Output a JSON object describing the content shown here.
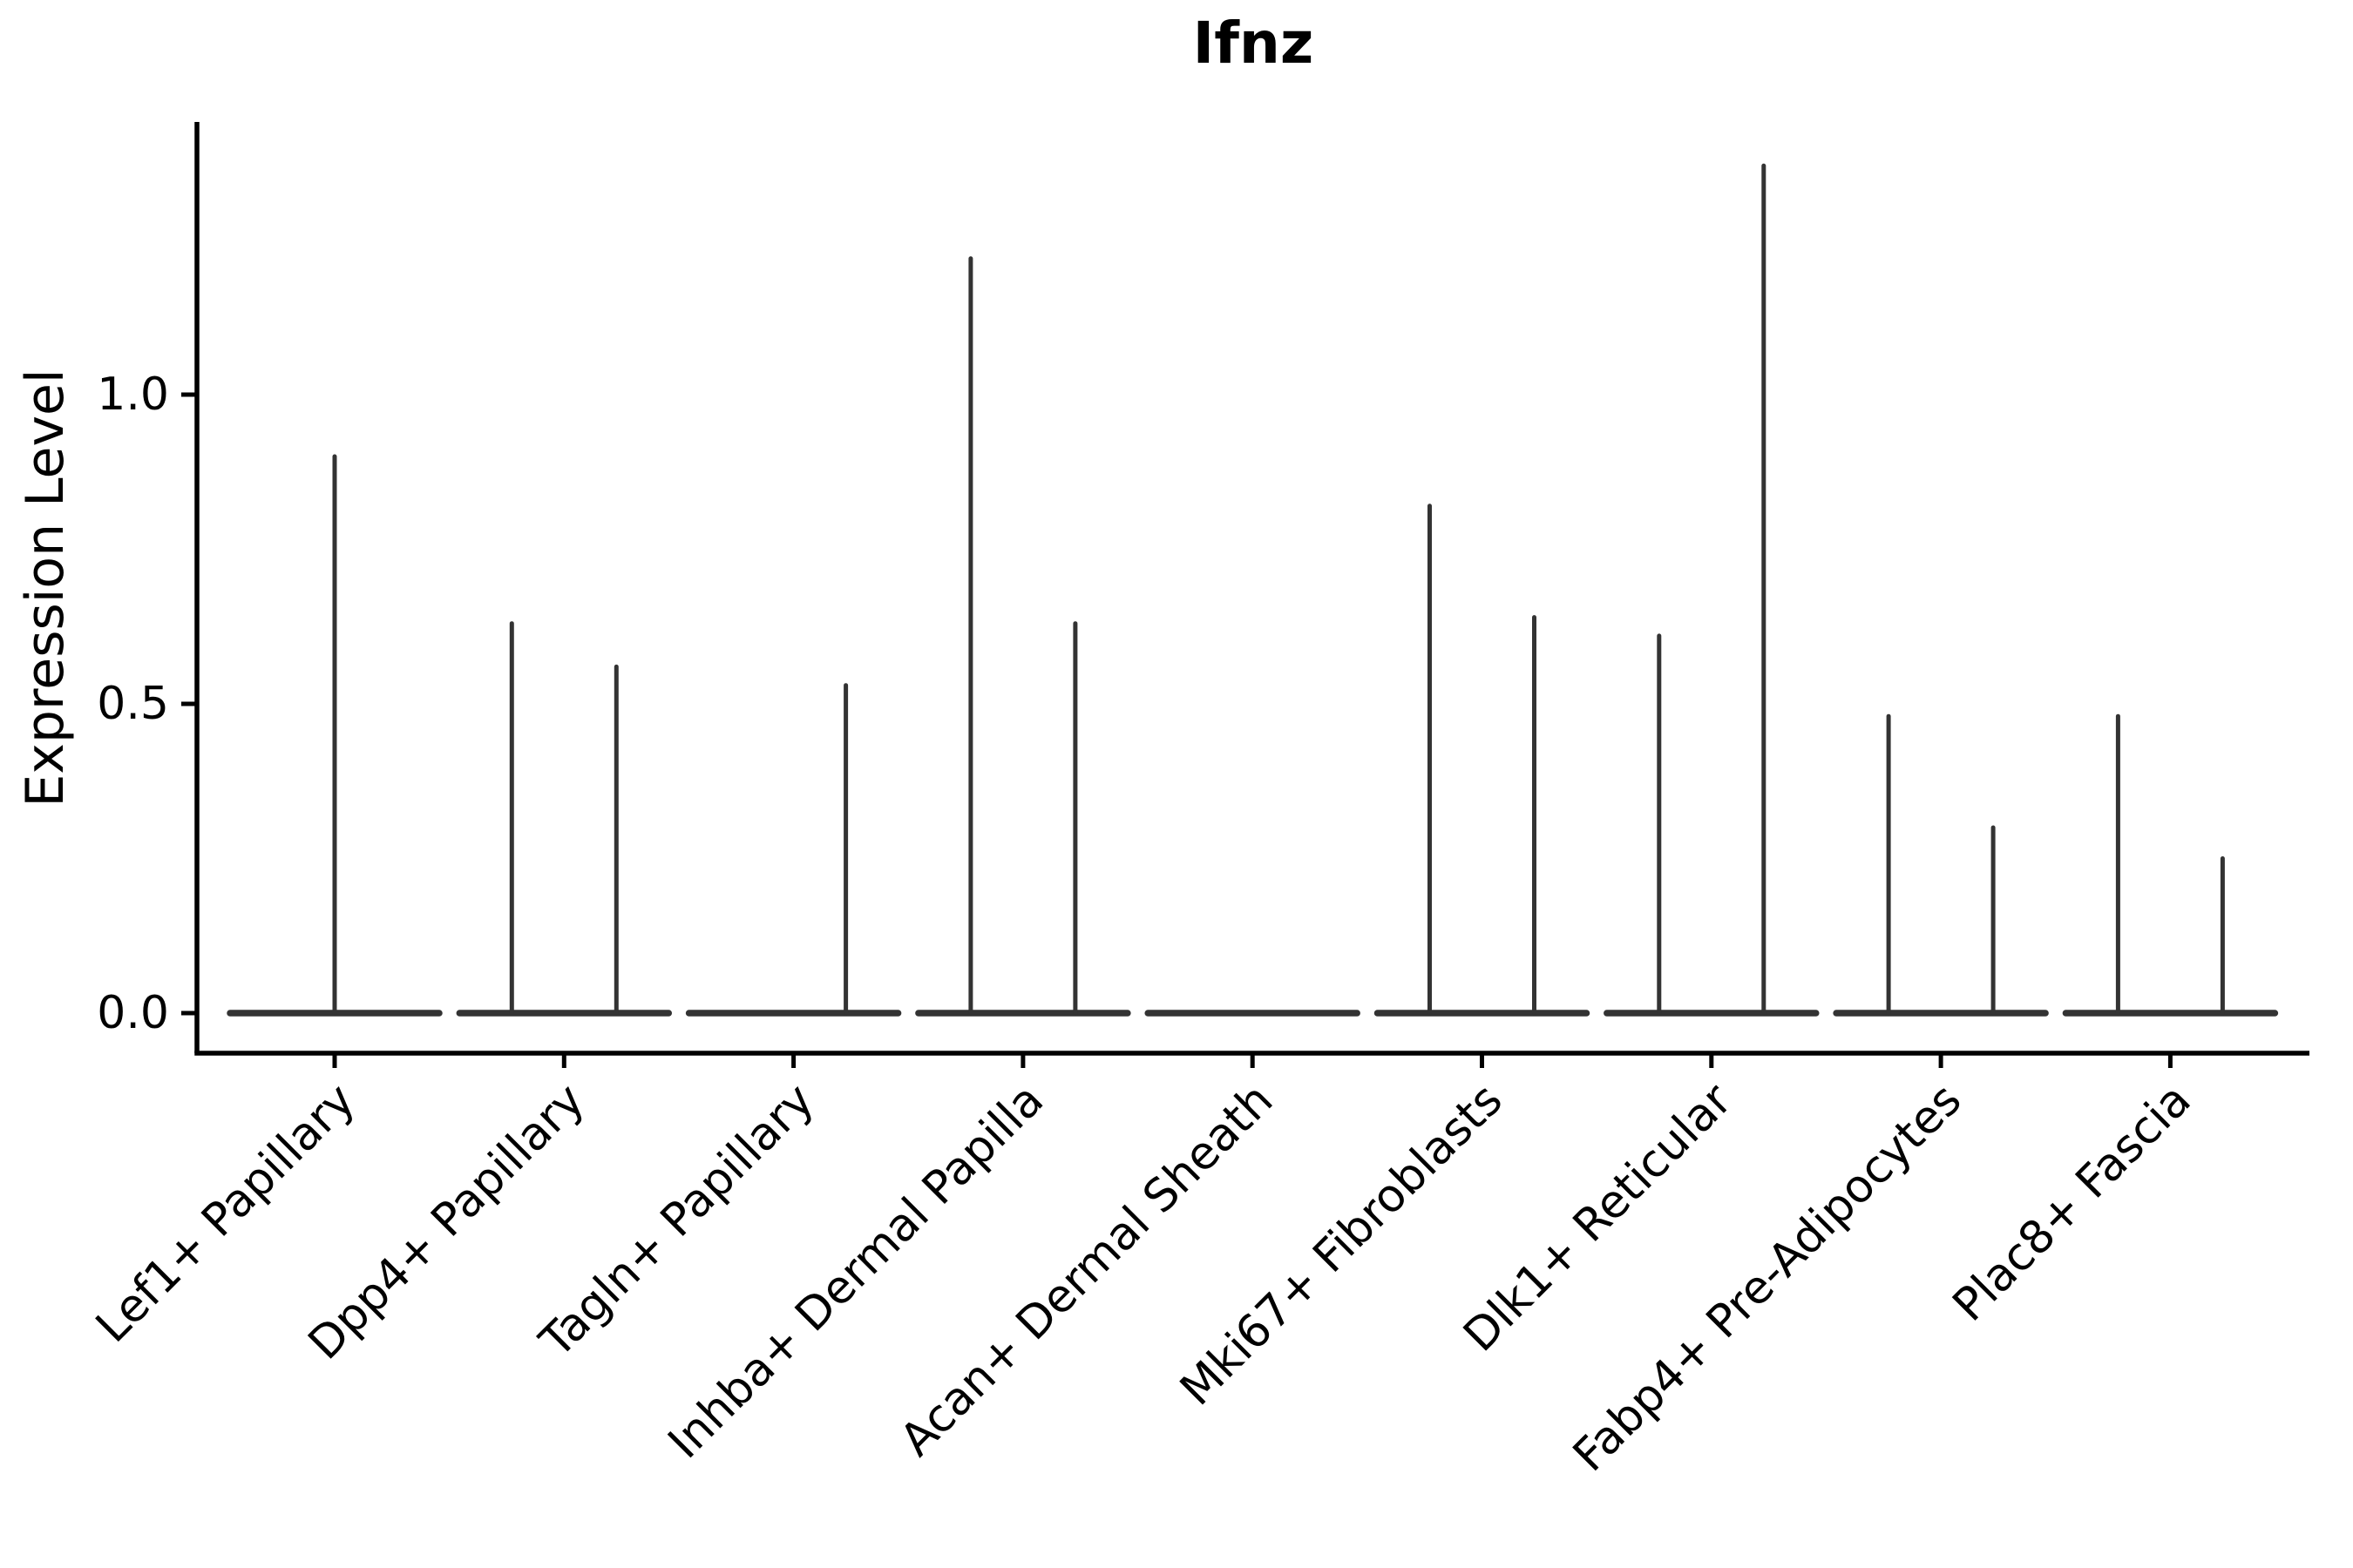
{
  "chart_data": {
    "type": "violin",
    "title": "Ifnz",
    "ylabel": "Expression Level",
    "xlabel": "",
    "grid": false,
    "legend": null,
    "ylim": [
      -0.065,
      1.505
    ],
    "baseline_value": 0.0,
    "yticks": [
      {
        "label": "0.0",
        "value": 0.0
      },
      {
        "label": "0.5",
        "value": 0.5
      },
      {
        "label": "1.0",
        "value": 1.0
      }
    ],
    "colors": {
      "violin_line": "#333333",
      "spine": "#000000",
      "text": "#000000",
      "background": "#ffffff"
    },
    "categories": [
      {
        "label": "Lef1+ Papillary",
        "violins": [
          {
            "position": "center",
            "max": 0.9
          }
        ]
      },
      {
        "label": "Dpp4+ Papillary",
        "violins": [
          {
            "position": "left",
            "max": 0.63
          },
          {
            "position": "right",
            "max": 0.56
          }
        ]
      },
      {
        "label": "Tagln+ Papillary",
        "violins": [
          {
            "position": "right",
            "max": 0.53
          }
        ]
      },
      {
        "label": "Inhba+ Dermal Papilla",
        "violins": [
          {
            "position": "left",
            "max": 1.22
          },
          {
            "position": "right",
            "max": 0.63
          }
        ]
      },
      {
        "label": "Acan+ Dermal Sheath",
        "violins": []
      },
      {
        "label": "Mki67+ Fibroblasts",
        "violins": [
          {
            "position": "left",
            "max": 0.82
          },
          {
            "position": "right",
            "max": 0.64
          }
        ]
      },
      {
        "label": "Dlk1+ Reticular",
        "violins": [
          {
            "position": "left",
            "max": 0.61
          },
          {
            "position": "right",
            "max": 1.37
          }
        ]
      },
      {
        "label": "Fabp4+ Pre-Adipocytes",
        "violins": [
          {
            "position": "left",
            "max": 0.48
          },
          {
            "position": "right",
            "max": 0.3
          }
        ]
      },
      {
        "label": "Plac8+ Fascia",
        "violins": [
          {
            "position": "left",
            "max": 0.48
          },
          {
            "position": "right",
            "max": 0.25
          }
        ]
      }
    ]
  }
}
